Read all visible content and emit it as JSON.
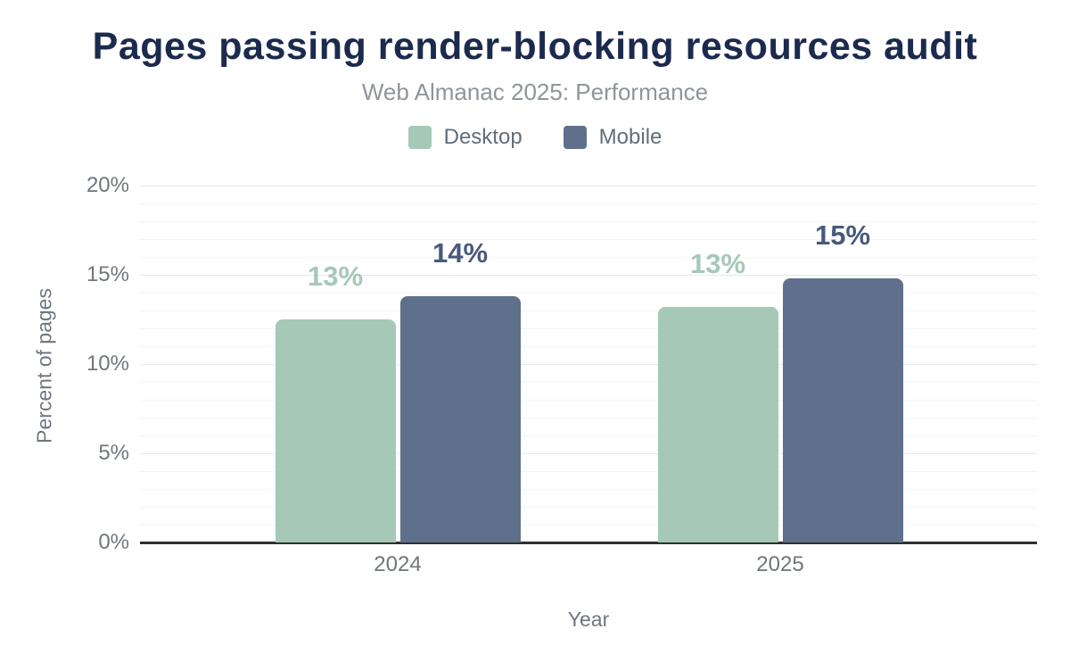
{
  "chart_data": {
    "type": "bar",
    "title": "Pages passing render-blocking resources audit",
    "subtitle": "Web Almanac 2025: Performance",
    "xlabel": "Year",
    "ylabel": "Percent of pages",
    "categories": [
      "2024",
      "2025"
    ],
    "series": [
      {
        "name": "Desktop",
        "color": "#a5c9b6",
        "label_color": "#a5c9b6",
        "values": [
          12.5,
          13.2
        ],
        "labels": [
          "13%",
          "13%"
        ]
      },
      {
        "name": "Mobile",
        "color": "#5f708c",
        "label_color": "#47597c",
        "values": [
          13.8,
          14.8
        ],
        "labels": [
          "14%",
          "15%"
        ]
      }
    ],
    "ylim": [
      0,
      20
    ],
    "yticks": [
      0,
      5,
      10,
      15,
      20
    ],
    "ytick_suffix": "%",
    "grid": "minor every 1%, major every 5%",
    "legend_position": "top"
  },
  "colors": {
    "background": "#ffffff",
    "title": "#1b2a4e",
    "subtitle": "#8e959b",
    "axis_text": "#70767e",
    "legend_text": "#626d78",
    "grid_minor": "#f5f5f5",
    "grid_major": "#e8e8e8",
    "baseline": "#303030"
  }
}
